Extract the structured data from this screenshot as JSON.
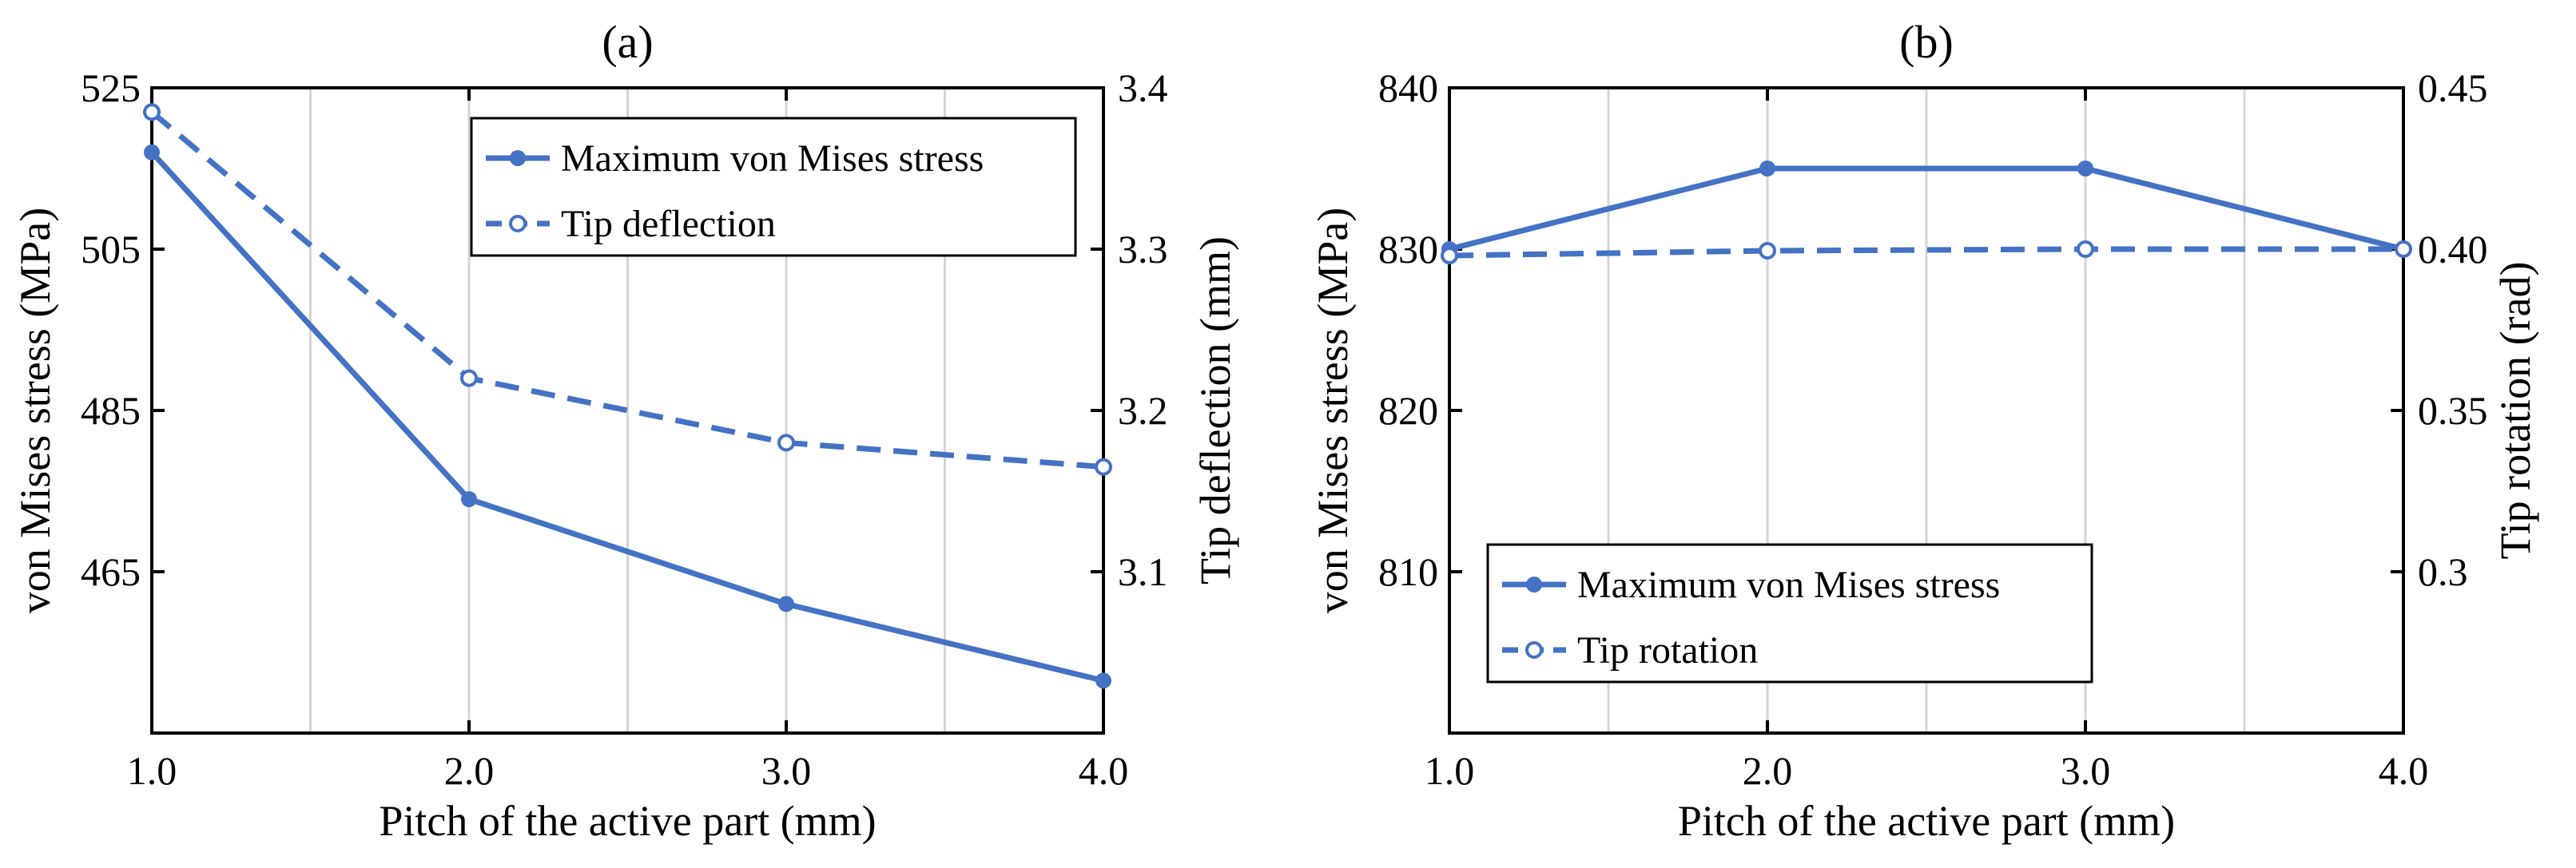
{
  "chart_data": [
    {
      "type": "line",
      "title": "(a)",
      "xlabel": "Pitch of the active part (mm)",
      "ylabel": "von Mises stress (MPa)",
      "y2label": "Tip deflection (mm)",
      "x": [
        1.0,
        2.0,
        3.0,
        4.0
      ],
      "xticks": [
        "1.0",
        "2.0",
        "3.0",
        "4.0"
      ],
      "xlim": [
        1.0,
        4.0
      ],
      "ylim": [
        445,
        525
      ],
      "yticks": [
        465,
        485,
        505,
        525
      ],
      "y2lim": [
        3.0,
        3.4
      ],
      "y2ticks": [
        "3.1",
        "3.2",
        "3.3",
        "3.4"
      ],
      "legend_position": "top-right",
      "series": [
        {
          "name": "Maximum von Mises stress",
          "axis": "left",
          "style": "solid",
          "marker": "filled-circle",
          "values": [
            517,
            474,
            461,
            451.5
          ]
        },
        {
          "name": "Tip deflection",
          "axis": "right",
          "style": "dashed",
          "marker": "open-circle",
          "values": [
            3.385,
            3.22,
            3.18,
            3.165
          ]
        }
      ],
      "color": "#4472c4"
    },
    {
      "type": "line",
      "title": "(b)",
      "xlabel": "Pitch of the active part (mm)",
      "ylabel": "von Mises stress (MPa)",
      "y2label": "Tip rotation (rad)",
      "x": [
        1.0,
        2.0,
        3.0,
        4.0
      ],
      "xticks": [
        "1.0",
        "2.0",
        "3.0",
        "4.0"
      ],
      "xlim": [
        1.0,
        4.0
      ],
      "ylim": [
        800,
        840
      ],
      "yticks": [
        810,
        820,
        830,
        840
      ],
      "y2lim": [
        0.25,
        0.45
      ],
      "y2ticks": [
        "0.3",
        "0.35",
        "0.40",
        "0.45"
      ],
      "legend_position": "bottom-left",
      "series": [
        {
          "name": "Maximum von Mises stress",
          "axis": "left",
          "style": "solid",
          "marker": "filled-circle",
          "values": [
            830,
            835,
            835,
            830
          ]
        },
        {
          "name": "Tip rotation",
          "axis": "right",
          "style": "dashed",
          "marker": "open-circle",
          "values": [
            0.398,
            0.3995,
            0.4,
            0.4
          ]
        }
      ],
      "color": "#4472c4"
    }
  ]
}
